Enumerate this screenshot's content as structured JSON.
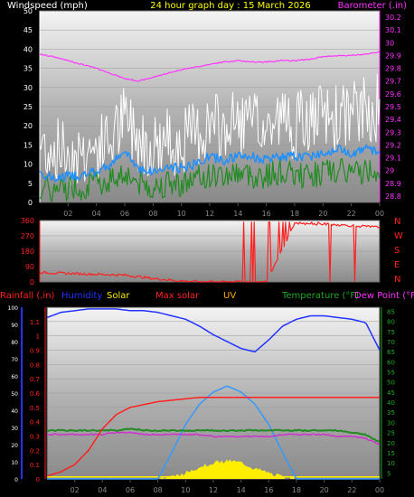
{
  "header": {
    "left_label": "Windspeed (mph)",
    "title": "24 hour graph day : 15 March 2026",
    "right_label": "Barometer (.in)"
  },
  "colors": {
    "background": "#000000",
    "wind_gust": "#ffffff",
    "wind_avg": "#1e90ff",
    "wind_low": "#228b22",
    "barometer": "#ff33ff",
    "direction": "#ff2020",
    "rainfall": "#ff2020",
    "humidity": "#2233ff",
    "solar": "#ffee00",
    "max_solar": "#3399ff",
    "temperature": "#228b22",
    "dew_point": "#cc33cc"
  },
  "chart_data": [
    {
      "type": "line",
      "id": "wind",
      "x_ticks": [
        "02",
        "04",
        "06",
        "08",
        "10",
        "12",
        "14",
        "16",
        "18",
        "20",
        "22",
        "00"
      ],
      "left_axis": {
        "label": "Windspeed (mph)",
        "ticks": [
          0,
          5,
          10,
          15,
          20,
          25,
          30,
          35,
          40,
          45,
          50
        ],
        "ylim": [
          0,
          50
        ]
      },
      "right_axis": {
        "label": "Barometer (.in)",
        "ticks": [
          "28.8",
          "28.9",
          "29",
          "29.1",
          "29.2",
          "29.3",
          "29.4",
          "29.5",
          "29.6",
          "29.7",
          "29.8",
          "29.9",
          "30",
          "30.1",
          "30.2"
        ],
        "ylim": [
          28.75,
          30.25
        ]
      },
      "x_hours": [
        0,
        1,
        2,
        3,
        4,
        5,
        6,
        7,
        8,
        9,
        10,
        11,
        12,
        13,
        14,
        15,
        16,
        17,
        18,
        19,
        20,
        21,
        22,
        23,
        24
      ],
      "series": [
        {
          "key": "gust",
          "values": [
            15,
            14,
            13,
            13,
            14,
            16,
            22,
            17,
            15,
            16,
            16,
            18,
            20,
            19,
            21,
            20,
            19,
            22,
            20,
            21,
            22,
            22,
            23,
            24,
            25
          ]
        },
        {
          "key": "average",
          "values": [
            8,
            6,
            7,
            7,
            8,
            10,
            13,
            9,
            8,
            9,
            9,
            10,
            12,
            11,
            12,
            12,
            11,
            12,
            12,
            12,
            13,
            14,
            13,
            14,
            13
          ]
        },
        {
          "key": "low",
          "values": [
            4,
            3,
            4,
            4,
            5,
            6,
            8,
            5,
            4,
            5,
            5,
            6,
            7,
            7,
            8,
            7,
            7,
            8,
            7,
            7,
            8,
            8,
            8,
            8,
            9
          ]
        },
        {
          "key": "barometer",
          "values": [
            29.91,
            29.89,
            29.86,
            29.83,
            29.8,
            29.76,
            29.72,
            29.7,
            29.73,
            29.76,
            29.79,
            29.81,
            29.83,
            29.85,
            29.86,
            29.85,
            29.85,
            29.86,
            29.86,
            29.87,
            29.89,
            29.9,
            29.9,
            29.91,
            29.93
          ]
        }
      ]
    },
    {
      "type": "scatter",
      "id": "direction",
      "y_ticks": [
        0,
        90,
        180,
        270,
        360
      ],
      "ylim": [
        0,
        360
      ],
      "compass_labels": [
        "N",
        "W",
        "S",
        "E",
        "N"
      ],
      "x_hours": [
        0,
        2,
        4,
        6,
        8,
        10,
        12,
        14,
        16,
        18,
        20,
        22,
        24
      ],
      "values": [
        55,
        50,
        45,
        40,
        20,
        5,
        0,
        0,
        0,
        340,
        340,
        330,
        320
      ]
    },
    {
      "type": "line",
      "id": "rain_temp",
      "legend": [
        "Rainfall (.in)",
        "Humidity",
        "Solar",
        "Max solar",
        "UV",
        "Temperature (°F)",
        "Dew Point (°F)"
      ],
      "x_ticks": [
        "02",
        "04",
        "06",
        "08",
        "10",
        "12",
        "14",
        "16",
        "18",
        "20",
        "22",
        "00"
      ],
      "rain_axis": {
        "label": "Rainfall (.in)",
        "ticks": [
          "0",
          "0.1",
          "0.2",
          "0.3",
          "0.4",
          "0.5",
          "0.6",
          "0.7",
          "0.8",
          "0.9",
          "1",
          "1.1"
        ],
        "ylim": [
          0,
          1.2
        ]
      },
      "humidity_axis": {
        "ticks": [
          0,
          10,
          20,
          30,
          40,
          50,
          60,
          70,
          80,
          90,
          100
        ],
        "ylim": [
          0,
          100
        ]
      },
      "temp_axis": {
        "ticks": [
          5,
          10,
          15,
          20,
          25,
          30,
          35,
          40,
          45,
          50,
          55,
          60,
          65,
          70,
          75,
          80,
          85
        ],
        "ylim": [
          2,
          87
        ]
      },
      "x_hours": [
        0,
        1,
        2,
        3,
        4,
        5,
        6,
        7,
        8,
        9,
        10,
        11,
        12,
        13,
        14,
        15,
        16,
        17,
        18,
        19,
        20,
        21,
        22,
        23,
        24
      ],
      "series": [
        {
          "key": "rainfall",
          "values": [
            0.02,
            0.05,
            0.1,
            0.2,
            0.35,
            0.45,
            0.5,
            0.52,
            0.54,
            0.55,
            0.56,
            0.57,
            0.57,
            0.57,
            0.57,
            0.57,
            0.57,
            0.57,
            0.57,
            0.57,
            0.57,
            0.57,
            0.57,
            0.57,
            0.57
          ]
        },
        {
          "key": "humidity",
          "values": [
            94,
            97,
            98,
            99,
            99,
            99,
            98,
            98,
            97,
            95,
            93,
            89,
            84,
            80,
            76,
            74,
            81,
            89,
            93,
            95,
            95,
            94,
            93,
            91,
            75
          ]
        },
        {
          "key": "temperature",
          "values": [
            26,
            26,
            26,
            26,
            26,
            26,
            27,
            26,
            26,
            26,
            26,
            26,
            26,
            26,
            26,
            26,
            26,
            26,
            26,
            26,
            26,
            26,
            25,
            24,
            20
          ]
        },
        {
          "key": "dew_point",
          "values": [
            24,
            24,
            24,
            24,
            24,
            25,
            25,
            24,
            24,
            24,
            24,
            24,
            23,
            23,
            23,
            23,
            23,
            24,
            24,
            24,
            24,
            23,
            23,
            22,
            19
          ]
        },
        {
          "key": "max_solar",
          "values": [
            0,
            0,
            0,
            0,
            0,
            0,
            0,
            0,
            0,
            13,
            27,
            37,
            43,
            46,
            43,
            37,
            27,
            13,
            0,
            0,
            0,
            0,
            0,
            0,
            0
          ]
        },
        {
          "key": "solar",
          "values": [
            0,
            0,
            0,
            0,
            0,
            0,
            0,
            0,
            0,
            1,
            3,
            6,
            8,
            9,
            8,
            5,
            3,
            1,
            0,
            0,
            0,
            0,
            0,
            0,
            0
          ]
        }
      ]
    }
  ]
}
